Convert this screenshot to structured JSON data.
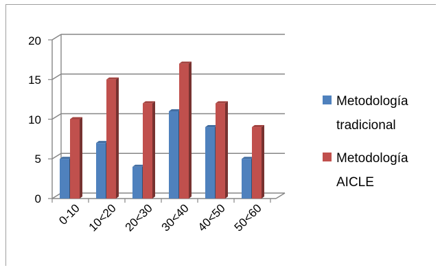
{
  "chart_data": {
    "type": "bar",
    "style": "3d-clustered-column",
    "categories": [
      "0-10",
      "10<20",
      "20<30",
      "30<40",
      "40<50",
      "50<60"
    ],
    "series": [
      {
        "name": "Metodología tradicional",
        "values": [
          5,
          7,
          4,
          11,
          9,
          5
        ],
        "color": "#4f81bd"
      },
      {
        "name": "Metodología AICLE",
        "values": [
          10,
          15,
          12,
          17,
          12,
          9
        ],
        "color": "#c0504d"
      }
    ],
    "ylim": [
      0,
      20
    ],
    "yticks": [
      "0",
      "5",
      "10",
      "15",
      "20"
    ],
    "grid": true,
    "legend_position": "right",
    "legend": [
      {
        "lines": [
          "Metodología",
          "tradicional"
        ],
        "color": "#4f81bd"
      },
      {
        "lines": [
          "Metodología",
          "AICLE"
        ],
        "color": "#c0504d"
      }
    ]
  }
}
